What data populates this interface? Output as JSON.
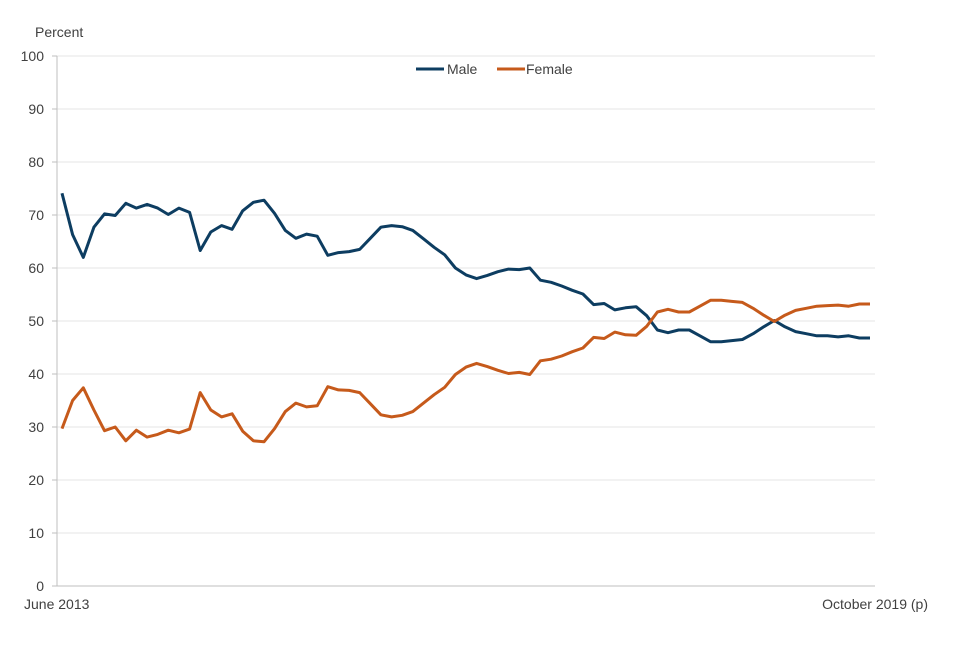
{
  "chart_data": {
    "type": "line",
    "title": "",
    "ylabel": "Percent",
    "xlabel": "",
    "ylim": [
      0,
      100
    ],
    "yticks": [
      0,
      10,
      20,
      30,
      40,
      50,
      60,
      70,
      80,
      90,
      100
    ],
    "x_start_label": "June 2013",
    "x_end_label": "October 2019 (p)",
    "grid": "horizontal",
    "legend_position": "top-center",
    "series": [
      {
        "name": "Male",
        "color": "#0d3d61",
        "values": [
          74.1,
          66.3,
          62.0,
          67.7,
          70.2,
          69.9,
          72.2,
          71.3,
          72.0,
          71.3,
          70.1,
          71.3,
          70.5,
          63.3,
          66.8,
          68.0,
          67.3,
          70.8,
          72.4,
          72.8,
          70.3,
          67.1,
          65.6,
          66.4,
          66.0,
          62.4,
          62.9,
          63.1,
          63.5,
          65.6,
          67.7,
          68.0,
          67.8,
          67.1,
          65.5,
          63.9,
          62.5,
          60.0,
          58.7,
          58.0,
          58.6,
          59.3,
          59.8,
          59.7,
          60.0,
          57.7,
          57.3,
          56.6,
          55.8,
          55.1,
          53.1,
          53.3,
          52.1,
          52.5,
          52.7,
          51.0,
          48.3,
          47.8,
          48.3,
          48.3,
          47.2,
          46.1,
          46.1,
          46.3,
          46.5,
          47.6,
          48.9,
          50.1,
          48.9,
          48.0,
          47.6,
          47.2,
          47.2,
          47.0,
          47.2,
          46.8,
          46.8
        ],
        "end_label": ""
      },
      {
        "name": "Female",
        "color": "#c65a1b",
        "values": [
          29.7,
          35.0,
          37.4,
          33.2,
          29.3,
          30.0,
          27.4,
          29.4,
          28.1,
          28.6,
          29.4,
          28.9,
          29.6,
          36.5,
          33.2,
          31.9,
          32.5,
          29.2,
          27.4,
          27.2,
          29.7,
          32.9,
          34.5,
          33.8,
          34.0,
          37.6,
          37.0,
          36.9,
          36.5,
          34.4,
          32.3,
          31.9,
          32.2,
          32.9,
          34.5,
          36.1,
          37.5,
          39.9,
          41.3,
          42.0,
          41.4,
          40.7,
          40.1,
          40.3,
          39.9,
          42.5,
          42.8,
          43.4,
          44.2,
          44.9,
          46.9,
          46.7,
          47.9,
          47.4,
          47.3,
          49.0,
          51.7,
          52.2,
          51.7,
          51.7,
          52.8,
          53.9,
          53.9,
          53.7,
          53.5,
          52.4,
          51.1,
          49.9,
          51.1,
          52.0,
          52.4,
          52.8,
          52.9,
          53.0,
          52.8,
          53.2,
          53.2
        ]
      }
    ]
  }
}
